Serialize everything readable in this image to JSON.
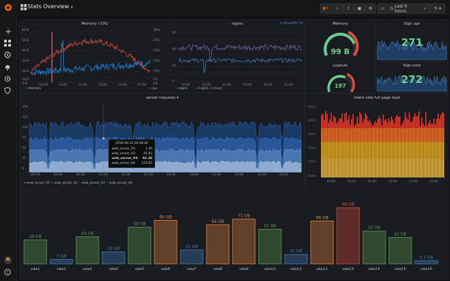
{
  "header": {
    "title": "Stats Overview",
    "time_range": "Last 6 hours"
  },
  "panels": {
    "memory_cpu": {
      "title": "Memory / CPU",
      "y_left": [
        "60 B",
        "50 B",
        "40 B",
        "30 B",
        "20 B",
        "10 B",
        "0 B"
      ],
      "y_right": [
        "30%",
        "25%",
        "20%",
        "15%",
        "10%",
        "5%",
        "0%"
      ],
      "x_ticks": [
        "10:00",
        "11:00",
        "12:00",
        "13:00",
        "14:00",
        "15:00"
      ],
      "legend_left": "memory",
      "legend_right": "cpu",
      "colors": {
        "memory": "#1f78c1",
        "cpu": "#e24d42"
      }
    },
    "logins": {
      "title": "logins",
      "badge": "timeshift -1h",
      "y_ticks": [
        "60",
        "40",
        "20",
        "0"
      ],
      "x_ticks": [
        "10:00",
        "11:00",
        "12:00",
        "13:00",
        "14:00",
        "15:00"
      ],
      "legend": [
        "logins",
        "logins (-1 hour)"
      ],
      "colors": {
        "logins": "#7b5ea7",
        "prev": "#447ebc"
      }
    },
    "memory_gauge": {
      "title": "Memory",
      "value": "99 B",
      "color": "#6ccf8e"
    },
    "signups": {
      "title": "Sign ups",
      "value": "271",
      "color": "#6ccf8e"
    },
    "logouts": {
      "title": "Logouts",
      "value": "197",
      "color": "#6ccf8e"
    },
    "signouts": {
      "title": "Sign outs",
      "value": "272",
      "color": "#6ccf8e"
    },
    "server_requests": {
      "title": "server requests",
      "y_ticks": [
        "150",
        "125",
        "100",
        "75",
        "50",
        "25",
        "0"
      ],
      "x_ticks": [
        "09:30",
        "10:00",
        "10:30",
        "11:00",
        "11:30",
        "12:00",
        "12:30",
        "13:00",
        "13:30",
        "14:00",
        "14:30",
        "15:00"
      ],
      "legend": [
        "web_server_01",
        "web_server_02",
        "web_server_03",
        "web_server_04"
      ],
      "tooltip": {
        "time": "2019-06-12 10:58:40",
        "rows": [
          {
            "name": "web_server_01:",
            "value": "1.30"
          },
          {
            "name": "web_server_02:",
            "value": "41.83"
          },
          {
            "name": "web_server_03:",
            "value": "82.38"
          },
          {
            "name": "web_server_04:",
            "value": "121.83"
          }
        ]
      }
    },
    "client_load": {
      "title": "client side full page load",
      "y_ticks": [
        "5.0 s",
        "4.0 s",
        "3.0 s",
        "2.0 s",
        "1.0 s",
        "0 ms"
      ],
      "x_ticks": [
        "10:00",
        "11:00",
        "12:00",
        "13:00",
        "14:00",
        "15:00"
      ]
    }
  },
  "chart_data": {
    "type": "bar",
    "categories": [
      "sda1",
      "sda2",
      "sda3",
      "sda4",
      "sda5",
      "sda6",
      "sda7",
      "sda8",
      "sda9",
      "sda10",
      "sda11",
      "sda12",
      "sda13",
      "sda14",
      "sda15",
      "sda16"
    ],
    "values": [
      38,
      7,
      43,
      19,
      58,
      69,
      22,
      62,
      71,
      55,
      15,
      68,
      89,
      52,
      42,
      5.1
    ],
    "labels": [
      "38 GB",
      "7 GB",
      "43 GB",
      "19 GB",
      "58 GB",
      "69 GB",
      "22 GB",
      "62 GB",
      "71 GB",
      "55 GB",
      "15 GB",
      "68 GB",
      "89 GB",
      "52 GB",
      "42 GB",
      "5.1 GB"
    ],
    "colors": [
      "#629e51",
      "#447ebc",
      "#629e51",
      "#447ebc",
      "#629e51",
      "#ef843c",
      "#447ebc",
      "#ef843c",
      "#ef843c",
      "#629e51",
      "#447ebc",
      "#ef843c",
      "#e24d42",
      "#629e51",
      "#629e51",
      "#447ebc"
    ],
    "ylim": [
      0,
      89
    ]
  }
}
